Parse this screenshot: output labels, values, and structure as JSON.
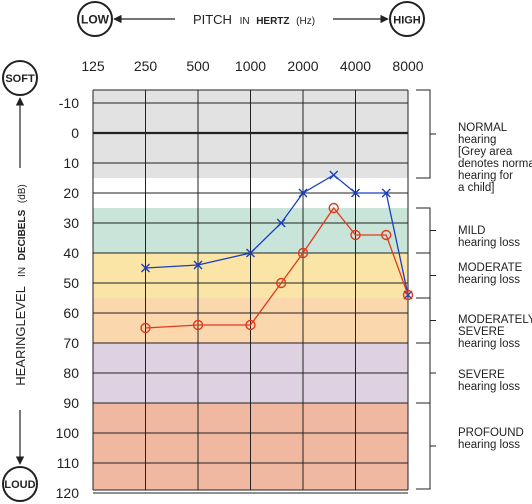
{
  "chart_data": {
    "type": "line",
    "header": {
      "low_label": "LOW",
      "high_label": "HIGH",
      "pitch_title_main": "PITCH",
      "pitch_title_in": "IN",
      "pitch_title_unit": "HERTZ",
      "pitch_title_paren": "(Hz)"
    },
    "ylabel": {
      "main": "HEARINGLEVEL",
      "in": "IN",
      "unit": "DECIBELS",
      "paren": "(dB)"
    },
    "soft_label": "SOFT",
    "loud_label": "LOUD",
    "x_ticks": [
      "125",
      "250",
      "500",
      "1000",
      "2000",
      "4000",
      "8000"
    ],
    "y_ticks": [
      "-10",
      "0",
      "10",
      "20",
      "30",
      "40",
      "50",
      "60",
      "70",
      "80",
      "90",
      "100",
      "110",
      "120"
    ],
    "x_scale": "log2",
    "xlim": [
      125,
      8000
    ],
    "ylim": [
      -15,
      120
    ],
    "y_inverted": true,
    "grid": true,
    "bands": [
      {
        "name": "normal",
        "from": -15,
        "to": 15,
        "color": "#e2e2e2"
      },
      {
        "name": "mild",
        "from": 25,
        "to": 40,
        "color": "#c9e5da"
      },
      {
        "name": "moderate",
        "from": 40,
        "to": 55,
        "color": "#fae4a6"
      },
      {
        "name": "moderately_severe",
        "from": 55,
        "to": 70,
        "color": "#fbd7ae"
      },
      {
        "name": "severe",
        "from": 70,
        "to": 90,
        "color": "#ddd1e2"
      },
      {
        "name": "profound",
        "from": 90,
        "to": 122,
        "color": "#f0b8a0"
      }
    ],
    "band_labels": [
      {
        "lines": [
          "NORMAL",
          "hearing",
          "[Grey area",
          "denotes normal",
          "hearing for",
          "a child]"
        ]
      },
      {
        "lines": [
          "MILD",
          "hearing loss"
        ]
      },
      {
        "lines": [
          "MODERATE",
          "hearing loss"
        ]
      },
      {
        "lines": [
          "MODERATELY",
          "SEVERE",
          "hearing loss"
        ]
      },
      {
        "lines": [
          "SEVERE",
          "hearing loss"
        ]
      },
      {
        "lines": [
          "PROFOUND",
          "hearing loss"
        ]
      }
    ],
    "series": [
      {
        "marker": "x",
        "color": "#1a3fbf",
        "x": [
          250,
          500,
          1000,
          1500,
          2000,
          3000,
          4000,
          6000,
          8000
        ],
        "y": [
          45,
          44,
          40,
          30,
          20,
          14,
          20,
          20,
          54
        ]
      },
      {
        "marker": "o",
        "color": "#e03a1e",
        "x": [
          250,
          500,
          1000,
          1500,
          2000,
          3000,
          4000,
          6000,
          8000
        ],
        "y": [
          65,
          64,
          64,
          50,
          40,
          25,
          34,
          34,
          54
        ]
      }
    ]
  }
}
